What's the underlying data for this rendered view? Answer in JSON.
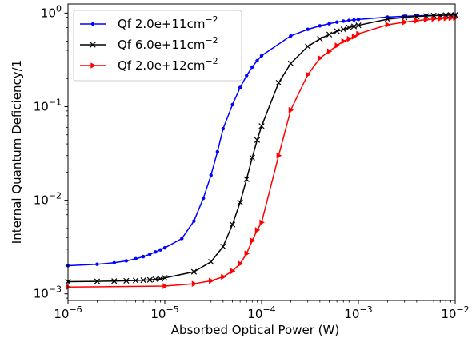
{
  "chart_data": {
    "type": "line",
    "title": "",
    "xlabel": "Absorbed Optical Power (W)",
    "ylabel": "Internal Quantum Deficiency/1",
    "xscale": "log",
    "yscale": "log",
    "xlim": [
      1e-06,
      0.01
    ],
    "ylim": [
      0.00085,
      1.25
    ],
    "grid": false,
    "legend_position": "top-left",
    "x_ticks": [
      {
        "value": 1e-06,
        "base": "10",
        "exp": "−6"
      },
      {
        "value": 1e-05,
        "base": "10",
        "exp": "−5"
      },
      {
        "value": 0.0001,
        "base": "10",
        "exp": "−4"
      },
      {
        "value": 0.001,
        "base": "10",
        "exp": "−3"
      },
      {
        "value": 0.01,
        "base": "10",
        "exp": "−2"
      }
    ],
    "y_ticks": [
      {
        "value": 0.001,
        "base": "10",
        "exp": "−3"
      },
      {
        "value": 0.01,
        "base": "10",
        "exp": "−2"
      },
      {
        "value": 0.1,
        "base": "10",
        "exp": "−1"
      },
      {
        "value": 1,
        "base": "10",
        "exp": "0"
      }
    ],
    "series": [
      {
        "name": "Qf 2.0e+11cm",
        "name_sup": "−2",
        "color": "#0000ff",
        "marker": "dot",
        "x": [
          1e-06,
          2e-06,
          3e-06,
          4e-06,
          5e-06,
          6e-06,
          7e-06,
          8e-06,
          9e-06,
          1e-05,
          1.5e-05,
          2e-05,
          2.5e-05,
          3e-05,
          3.5e-05,
          4e-05,
          5e-05,
          6e-05,
          7e-05,
          8e-05,
          9e-05,
          0.0001,
          0.0002,
          0.0003,
          0.0004,
          0.0005,
          0.0006,
          0.0007,
          0.0008,
          0.0009,
          0.001,
          0.002,
          0.003,
          0.004,
          0.005,
          0.006,
          0.007,
          0.008,
          0.009,
          0.01
        ],
        "y": [
          0.002,
          0.00207,
          0.00215,
          0.00225,
          0.00237,
          0.0025,
          0.00265,
          0.0028,
          0.00295,
          0.0031,
          0.0039,
          0.006,
          0.0105,
          0.0185,
          0.033,
          0.058,
          0.105,
          0.16,
          0.215,
          0.265,
          0.31,
          0.35,
          0.57,
          0.67,
          0.73,
          0.77,
          0.8,
          0.82,
          0.835,
          0.845,
          0.855,
          0.905,
          0.925,
          0.935,
          0.94,
          0.945,
          0.948,
          0.95,
          0.952,
          0.955
        ]
      },
      {
        "name": "Qf 6.0e+11cm",
        "name_sup": "−2",
        "color": "#000000",
        "marker": "x",
        "x": [
          1e-06,
          2e-06,
          3e-06,
          4e-06,
          5e-06,
          6e-06,
          7e-06,
          8e-06,
          9e-06,
          1e-05,
          2e-05,
          3e-05,
          4e-05,
          5e-05,
          6e-05,
          7e-05,
          8e-05,
          9e-05,
          0.0001,
          0.00015,
          0.0002,
          0.0003,
          0.0004,
          0.0005,
          0.0006,
          0.0007,
          0.0008,
          0.0009,
          0.001,
          0.002,
          0.003,
          0.004,
          0.005,
          0.006,
          0.007,
          0.008,
          0.009,
          0.01
        ],
        "y": [
          0.00135,
          0.00136,
          0.00137,
          0.00138,
          0.00139,
          0.0014,
          0.00141,
          0.00143,
          0.00145,
          0.00148,
          0.00172,
          0.0022,
          0.0032,
          0.0055,
          0.0095,
          0.0168,
          0.0285,
          0.044,
          0.062,
          0.18,
          0.29,
          0.44,
          0.53,
          0.59,
          0.64,
          0.67,
          0.7,
          0.72,
          0.74,
          0.86,
          0.9,
          0.92,
          0.93,
          0.94,
          0.945,
          0.95,
          0.953,
          0.955
        ]
      },
      {
        "name": "Qf 2.0e+12cm",
        "name_sup": "−2",
        "color": "#ff0000",
        "marker": "triangle-right",
        "x": [
          1e-06,
          1e-05,
          2e-05,
          3e-05,
          4e-05,
          5e-05,
          6e-05,
          7e-05,
          8e-05,
          9e-05,
          0.0001,
          0.00015,
          0.0002,
          0.0003,
          0.0004,
          0.0005,
          0.0006,
          0.0007,
          0.0008,
          0.0009,
          0.001,
          0.002,
          0.003,
          0.004,
          0.005,
          0.006,
          0.007,
          0.008,
          0.009,
          0.01
        ],
        "y": [
          0.00118,
          0.00121,
          0.00128,
          0.00138,
          0.00152,
          0.00175,
          0.0021,
          0.0027,
          0.0037,
          0.0048,
          0.0058,
          0.03,
          0.092,
          0.22,
          0.33,
          0.39,
          0.45,
          0.5,
          0.53,
          0.56,
          0.6,
          0.75,
          0.8,
          0.83,
          0.85,
          0.865,
          0.875,
          0.88,
          0.885,
          0.89
        ]
      }
    ]
  }
}
